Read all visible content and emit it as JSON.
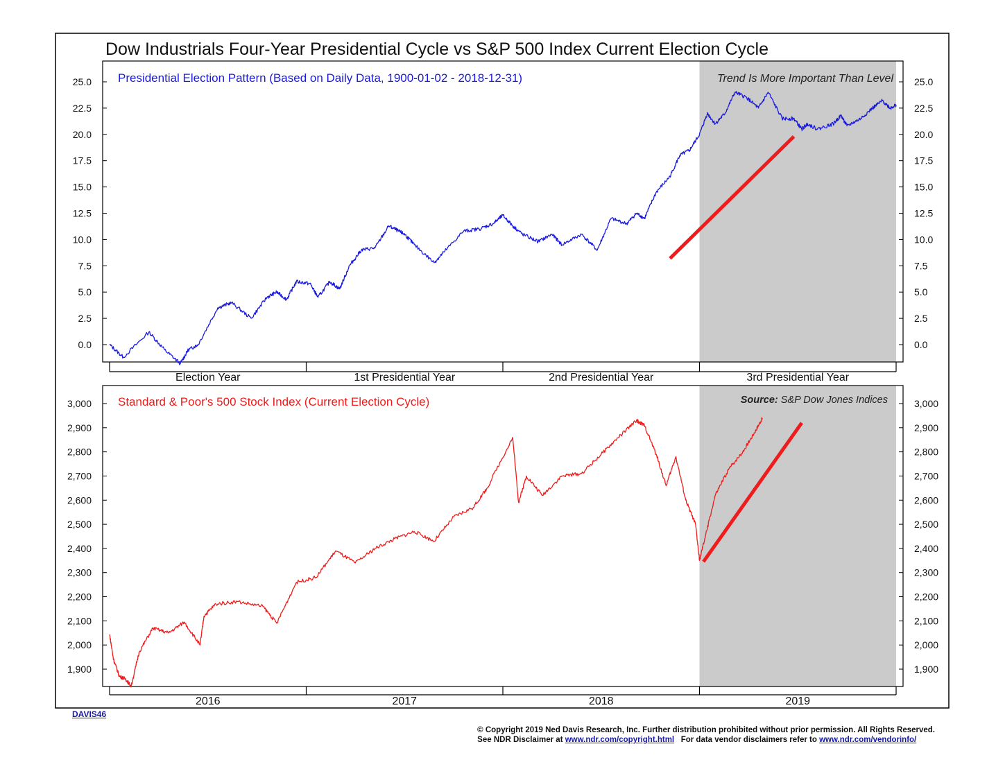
{
  "title": "Dow Industrials Four-Year Presidential Cycle vs S&P 500 Index Current Election Cycle",
  "footer": {
    "code": "DAVIS46",
    "line1": "© Copyright 2019 Ned Davis Research, Inc. Further distribution prohibited without prior permission. All Rights Reserved.",
    "line2_prefix": "See NDR Disclaimer at ",
    "line2_url1": "www.ndr.com/copyright.html",
    "line2_middle": "   For data vendor disclaimers refer to ",
    "line2_url2": "www.ndr.com/vendorinfo/"
  },
  "colors": {
    "top_series": "#1b1bdc",
    "bottom_series": "#ee1c1c",
    "shade": "#cbcbcb",
    "trend": "#ee1c1c"
  },
  "chart_data": [
    {
      "type": "line",
      "title": "Presidential Election Pattern (Based on Daily Data, 1900-01-02 - 2018-12-31)",
      "annotation": "Trend Is More Important Than Level",
      "ylim": [
        -2,
        27
      ],
      "yticks": [
        0.0,
        2.5,
        5.0,
        7.5,
        10.0,
        12.5,
        15.0,
        17.5,
        20.0,
        22.5,
        25.0
      ],
      "ytick_labels": [
        "0.0",
        "2.5",
        "5.0",
        "7.5",
        "10.0",
        "12.5",
        "15.0",
        "17.5",
        "20.0",
        "22.5",
        "25.0"
      ],
      "x_unit": "years into cycle",
      "xlim": [
        0,
        4
      ],
      "x_categories": [
        "Election Year",
        "1st Presidential Year",
        "2nd Presidential Year",
        "3rd Presidential Year"
      ],
      "shaded_range": [
        3,
        4
      ],
      "series": [
        {
          "name": "Presidential Election Pattern",
          "x": [
            0,
            0.07,
            0.2,
            0.28,
            0.36,
            0.4,
            0.45,
            0.55,
            0.62,
            0.72,
            0.8,
            0.85,
            0.9,
            0.95,
            1.02,
            1.06,
            1.12,
            1.17,
            1.22,
            1.28,
            1.35,
            1.42,
            1.47,
            1.5,
            1.55,
            1.65,
            1.7,
            1.8,
            1.88,
            1.95,
            2.0,
            2.05,
            2.1,
            2.18,
            2.25,
            2.3,
            2.4,
            2.48,
            2.55,
            2.63,
            2.68,
            2.72,
            2.78,
            2.85,
            2.9,
            2.95,
            3.0,
            3.04,
            3.08,
            3.13,
            3.18,
            3.24,
            3.3,
            3.35,
            3.42,
            3.48,
            3.52,
            3.55,
            3.6,
            3.68,
            3.72,
            3.75,
            3.82,
            3.88,
            3.93,
            3.97,
            4.0
          ],
          "values": [
            0,
            -1.2,
            1.2,
            -0.5,
            -1.8,
            -0.5,
            0,
            3.5,
            4.0,
            2.5,
            4.5,
            5.0,
            4.3,
            6.0,
            5.8,
            4.5,
            6.0,
            5.3,
            7.5,
            9.0,
            9.2,
            11.3,
            10.8,
            10.5,
            9.5,
            7.8,
            8.8,
            10.8,
            11.0,
            11.5,
            12.3,
            11.3,
            10.5,
            9.8,
            10.5,
            9.5,
            10.5,
            9.0,
            12.0,
            11.5,
            12.5,
            12.0,
            14.5,
            16.0,
            18.0,
            18.5,
            20.0,
            22.0,
            21.0,
            22.0,
            24.0,
            23.5,
            22.5,
            24.0,
            21.5,
            21.5,
            20.5,
            21.0,
            20.5,
            21.0,
            21.8,
            20.8,
            21.5,
            22.5,
            23.2,
            22.5,
            22.8
          ]
        }
      ],
      "trend_line": {
        "x": [
          2.85,
          3.48
        ],
        "values": [
          8.2,
          19.8
        ]
      }
    },
    {
      "type": "line",
      "title": "Standard & Poor's 500 Stock Index (Current Election Cycle)",
      "source_label": "Source:",
      "source_text": "S&P Dow Jones Indices",
      "ylim": [
        1830,
        3050
      ],
      "yticks": [
        1900,
        2000,
        2100,
        2200,
        2300,
        2400,
        2500,
        2600,
        2700,
        2800,
        2900,
        3000
      ],
      "ytick_labels": [
        "1,900",
        "2,000",
        "2,100",
        "2,200",
        "2,300",
        "2,400",
        "2,500",
        "2,600",
        "2,700",
        "2,800",
        "2,900",
        "3,000"
      ],
      "x_unit": "year",
      "xlim": [
        2016,
        2020
      ],
      "x_categories": [
        "2016",
        "2017",
        "2018",
        "2019"
      ],
      "shaded_range": [
        2019,
        2020
      ],
      "series": [
        {
          "name": "S&P 500",
          "x": [
            2016.0,
            2016.02,
            2016.05,
            2016.08,
            2016.11,
            2016.15,
            2016.22,
            2016.3,
            2016.38,
            2016.46,
            2016.48,
            2016.54,
            2016.65,
            2016.78,
            2016.85,
            2016.95,
            2017.05,
            2017.15,
            2017.25,
            2017.35,
            2017.45,
            2017.55,
            2017.65,
            2017.75,
            2017.85,
            2017.92,
            2018.05,
            2018.08,
            2018.12,
            2018.2,
            2018.3,
            2018.4,
            2018.5,
            2018.6,
            2018.68,
            2018.72,
            2018.78,
            2018.83,
            2018.88,
            2018.93,
            2018.98,
            2019.0,
            2019.03,
            2019.08,
            2019.15,
            2019.22,
            2019.28,
            2019.32
          ],
          "values": [
            2044,
            1940,
            1870,
            1860,
            1830,
            1970,
            2070,
            2050,
            2095,
            2000,
            2120,
            2170,
            2180,
            2160,
            2090,
            2260,
            2280,
            2390,
            2340,
            2400,
            2440,
            2470,
            2430,
            2530,
            2570,
            2650,
            2860,
            2590,
            2700,
            2620,
            2700,
            2710,
            2790,
            2870,
            2930,
            2910,
            2790,
            2660,
            2780,
            2600,
            2500,
            2350,
            2450,
            2620,
            2730,
            2800,
            2880,
            2940
          ]
        }
      ],
      "trend_line": {
        "x": [
          2019.02,
          2019.52
        ],
        "values": [
          2345,
          2920
        ]
      }
    }
  ]
}
